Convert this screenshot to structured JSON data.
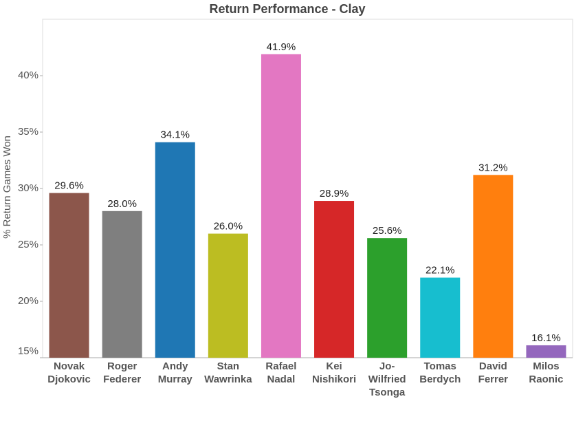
{
  "chart_data": {
    "type": "bar",
    "title": "Return Performance - Clay",
    "y_label": "% Return Games Won",
    "categories": [
      "Novak Djokovic",
      "Roger Federer",
      "Andy Murray",
      "Stan Wawrinka",
      "Rafael Nadal",
      "Kei Nishikori",
      "Jo-Wilfried Tsonga",
      "Tomas Berdych",
      "David Ferrer",
      "Milos Raonic"
    ],
    "values": [
      29.6,
      28.0,
      34.1,
      26.0,
      41.9,
      28.9,
      25.6,
      22.1,
      31.2,
      16.1
    ],
    "value_labels": [
      "29.6%",
      "28.0%",
      "34.1%",
      "26.0%",
      "41.9%",
      "28.9%",
      "25.6%",
      "22.1%",
      "31.2%",
      "16.1%"
    ],
    "colors": [
      "#8c564b",
      "#7f7f7f",
      "#1f77b4",
      "#bcbd22",
      "#e377c2",
      "#d62728",
      "#2ca02c",
      "#17becf",
      "#ff7f0e",
      "#9467bd"
    ],
    "ylim": [
      15,
      45
    ],
    "yticks": [
      {
        "value": 15,
        "label": "15%"
      },
      {
        "value": 20,
        "label": "20%"
      },
      {
        "value": 25,
        "label": "25%"
      },
      {
        "value": 30,
        "label": "30%"
      },
      {
        "value": 35,
        "label": "35%"
      },
      {
        "value": 40,
        "label": "40%"
      }
    ]
  }
}
